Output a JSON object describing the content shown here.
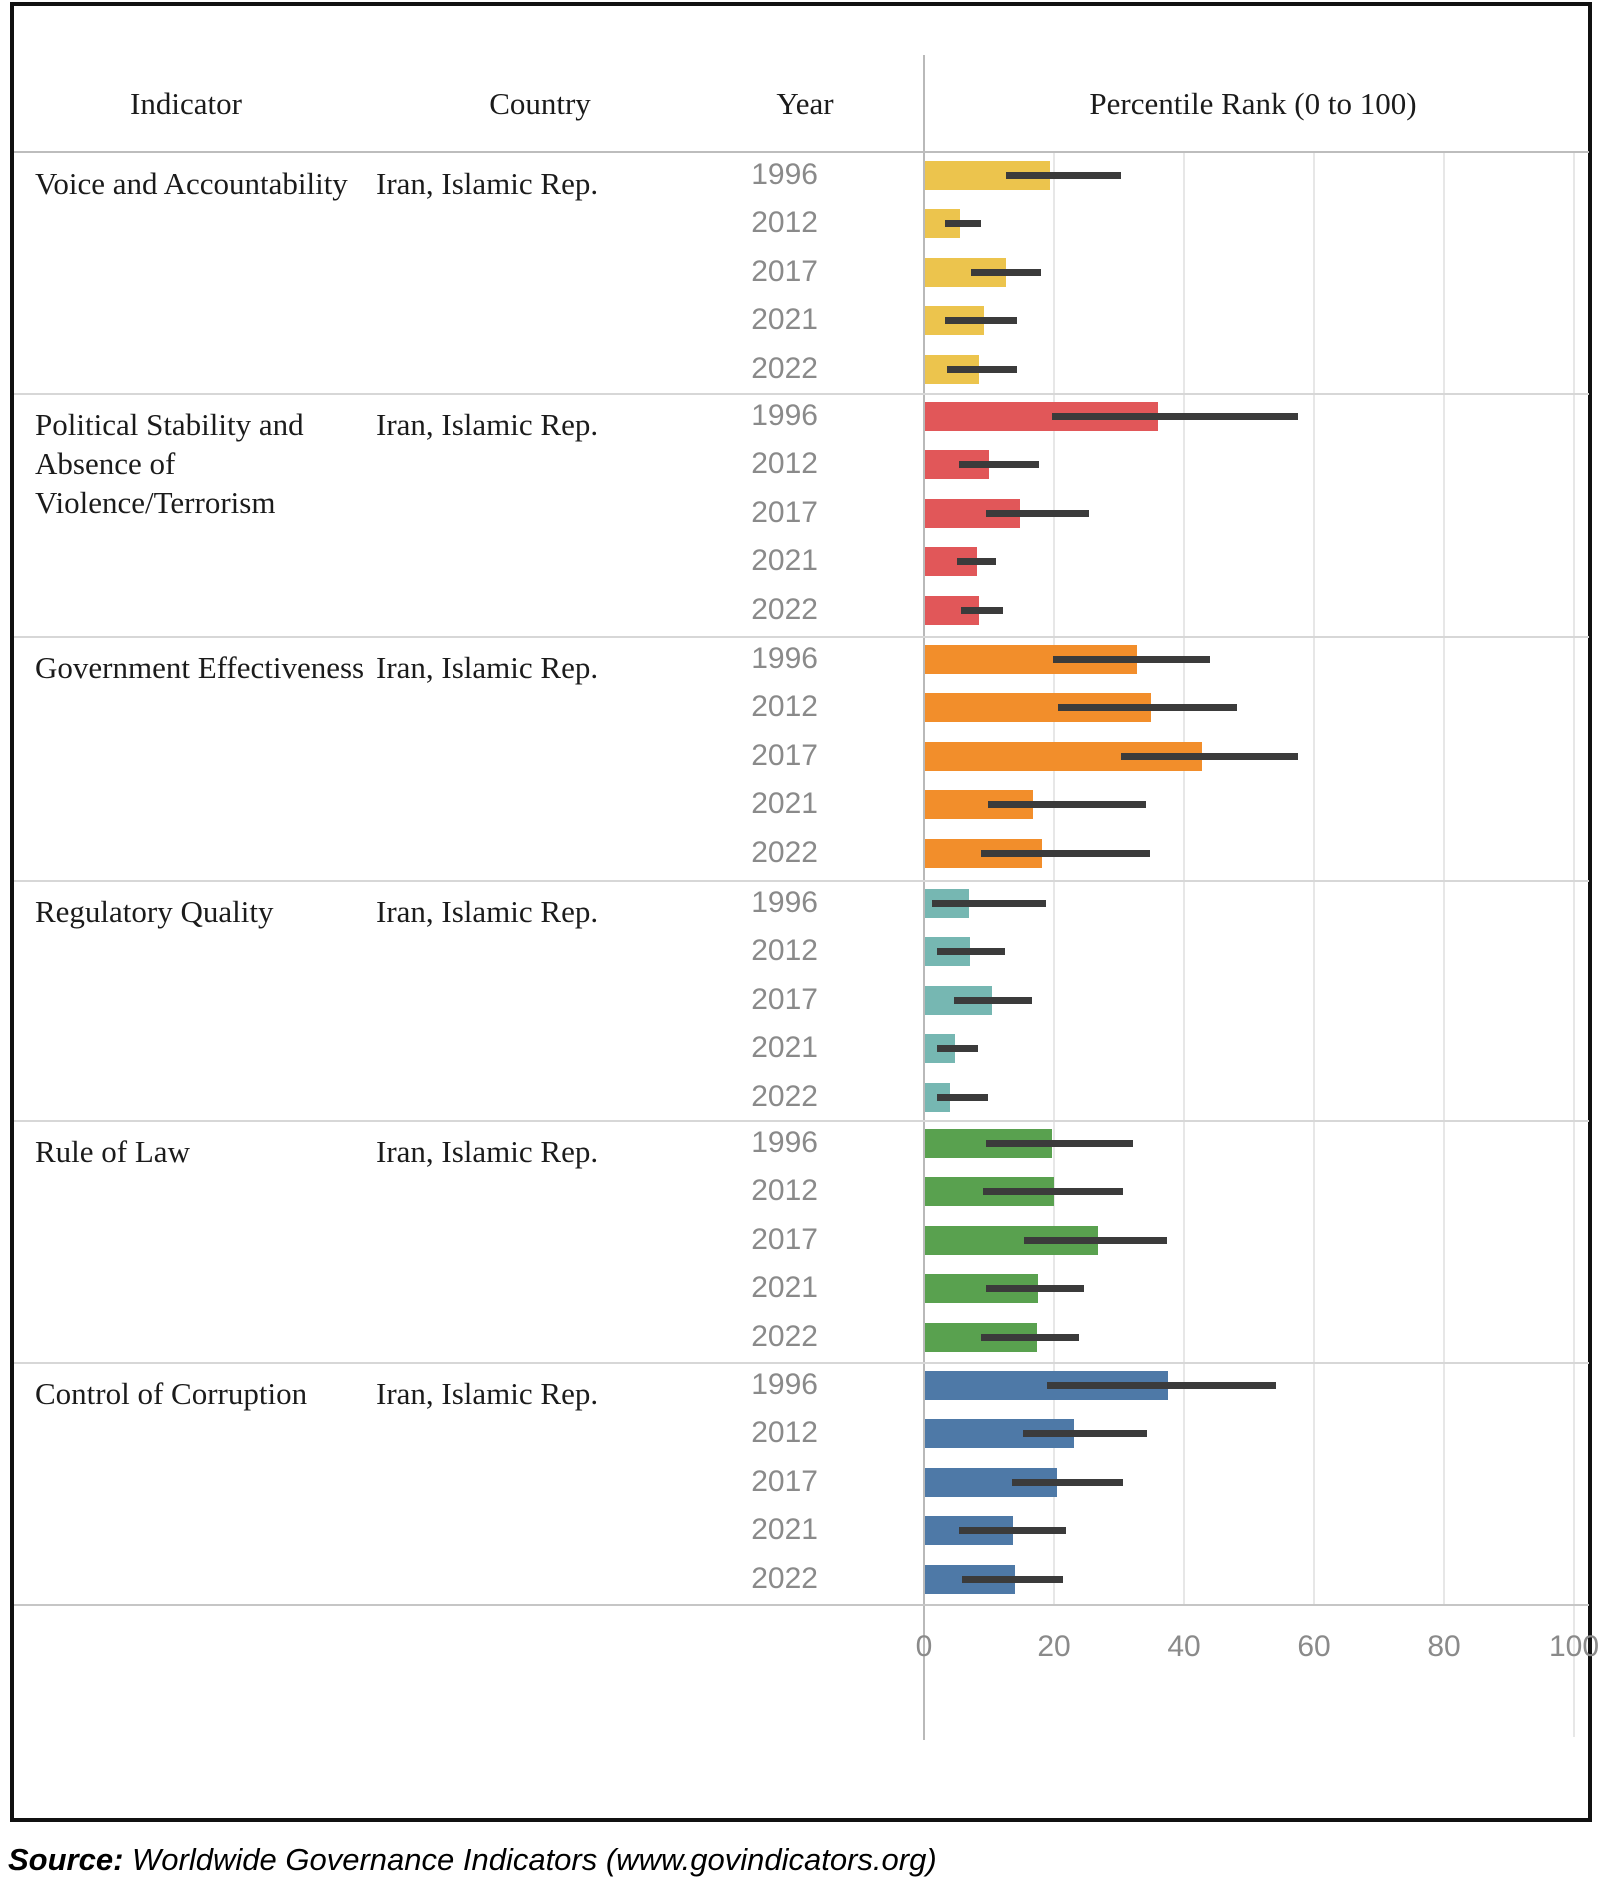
{
  "table": {
    "headers": {
      "indicator": "Indicator",
      "country": "Country",
      "year": "Year",
      "percentile": "Percentile Rank (0 to 100)"
    }
  },
  "source": {
    "label": "Source:",
    "text": " Worldwide Governance Indicators (www.govindicators.org)"
  },
  "chart_data": {
    "type": "bar",
    "orientation": "horizontal",
    "title": "Percentile Rank (0 to 100)",
    "country": "Iran, Islamic Rep.",
    "years": [
      "1996",
      "2012",
      "2017",
      "2021",
      "2022"
    ],
    "xlim": [
      0,
      100
    ],
    "x_ticks": [
      0,
      20,
      40,
      60,
      80,
      100
    ],
    "grid": true,
    "error_bars": true,
    "error_bar_color": "#3b3b3b",
    "series": [
      {
        "indicator": "Voice and Accountability",
        "color": "#ECC44D",
        "values": [
          19.2,
          5.4,
          12.5,
          9.1,
          8.3
        ],
        "ci_low": [
          12.6,
          3.2,
          7.2,
          3.2,
          3.5
        ],
        "ci_high": [
          30.3,
          8.8,
          18.0,
          14.3,
          14.3
        ]
      },
      {
        "indicator": "Political Stability and Absence of Violence/Terrorism",
        "color": "#E15759",
        "values": [
          35.8,
          9.8,
          14.6,
          8.0,
          8.3
        ],
        "ci_low": [
          19.7,
          5.4,
          9.5,
          5.1,
          5.7
        ],
        "ci_high": [
          57.5,
          17.7,
          25.4,
          11.1,
          12.2
        ]
      },
      {
        "indicator": "Government Effectiveness",
        "color": "#F28E2B",
        "values": [
          32.6,
          34.8,
          42.6,
          16.6,
          18.0
        ],
        "ci_low": [
          19.8,
          20.6,
          30.3,
          9.8,
          8.8
        ],
        "ci_high": [
          44.0,
          48.2,
          57.5,
          34.2,
          34.8
        ]
      },
      {
        "indicator": "Regulatory Quality",
        "color": "#76B7B2",
        "values": [
          6.8,
          6.9,
          10.3,
          4.6,
          3.8
        ],
        "ci_low": [
          1.2,
          2.0,
          4.6,
          2.0,
          2.0
        ],
        "ci_high": [
          18.8,
          12.5,
          16.6,
          8.3,
          9.8
        ]
      },
      {
        "indicator": "Rule of Law",
        "color": "#59A14F",
        "values": [
          19.5,
          19.8,
          26.6,
          17.4,
          17.2
        ],
        "ci_low": [
          9.5,
          9.1,
          15.4,
          9.5,
          8.8
        ],
        "ci_high": [
          32.2,
          30.6,
          37.4,
          24.6,
          23.8
        ]
      },
      {
        "indicator": "Control of Corruption",
        "color": "#4E79A7",
        "values": [
          37.4,
          22.9,
          20.3,
          13.5,
          13.8
        ],
        "ci_low": [
          18.9,
          15.2,
          13.5,
          5.4,
          5.8
        ],
        "ci_high": [
          54.2,
          34.3,
          30.6,
          21.8,
          21.4
        ]
      }
    ]
  }
}
